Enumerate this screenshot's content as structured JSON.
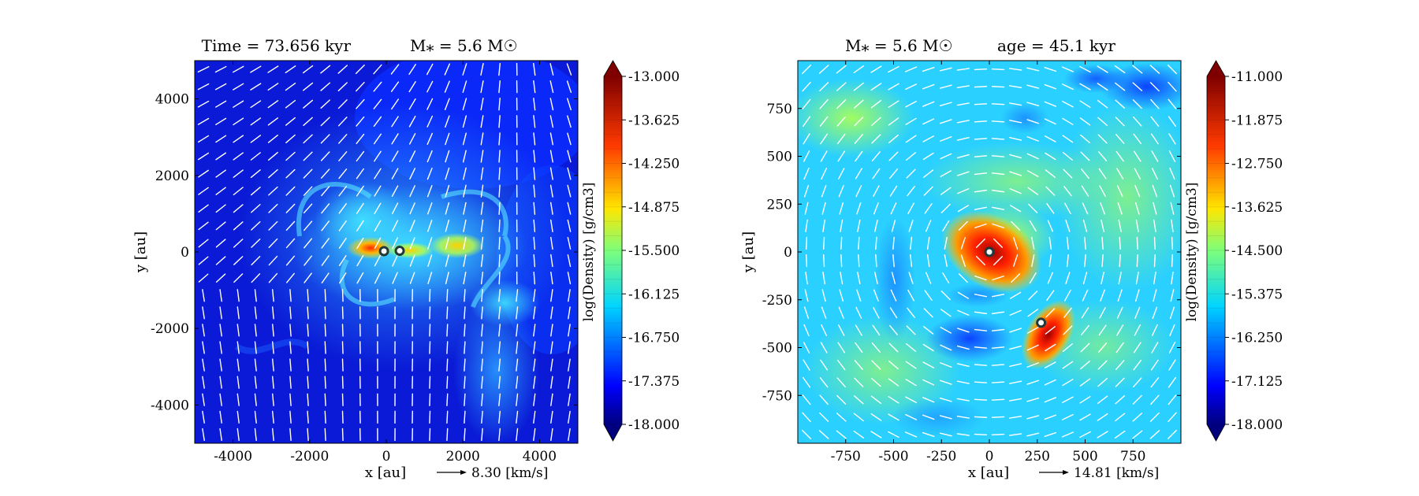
{
  "panels": [
    {
      "title_left": "Time = 73.656 kyr",
      "title_right": "M⁎ = 5.6 M☉",
      "xlabel": "x [au]",
      "ylabel": "y [au]",
      "xticks": [
        -4000,
        -2000,
        0,
        2000,
        4000
      ],
      "yticks": [
        4000,
        2000,
        0,
        -2000,
        -4000
      ],
      "xlim": [
        -5000,
        5000
      ],
      "ylim": [
        -5000,
        5000
      ],
      "colorbar": {
        "label": "log(Density) [g/cm3]",
        "min": -18.0,
        "max": -13.0,
        "ticks": [
          "-13.000",
          "-13.625",
          "-14.250",
          "-14.875",
          "-15.500",
          "-16.125",
          "-16.750",
          "-17.375",
          "-18.000"
        ]
      },
      "quiver_key": "8.30 [km/s]",
      "sinks": [
        {
          "x": -60,
          "y": 20
        },
        {
          "x": 350,
          "y": 30
        }
      ]
    },
    {
      "title_left": "M⁎ = 5.6 M☉",
      "title_right": "age = 45.1 kyr",
      "xlabel": "x [au]",
      "ylabel": "y [au]",
      "xticks": [
        -750,
        -500,
        -250,
        0,
        250,
        500,
        750
      ],
      "yticks": [
        750,
        500,
        250,
        0,
        -250,
        -500,
        -750
      ],
      "xlim": [
        -1000,
        1000
      ],
      "ylim": [
        -1000,
        1000
      ],
      "colorbar": {
        "label": "log(Density) [g/cm3]",
        "min": -18.0,
        "max": -11.0,
        "ticks": [
          "-11.000",
          "-11.875",
          "-12.750",
          "-13.625",
          "-14.500",
          "-15.375",
          "-16.250",
          "-17.125",
          "-18.000"
        ]
      },
      "quiver_key": "14.81 [km/s]",
      "sinks": [
        {
          "x": 0,
          "y": 0
        },
        {
          "x": 270,
          "y": -370
        }
      ]
    }
  ],
  "chart_data": [
    {
      "type": "heatmap",
      "title": "Time = 73.656 kyr    M⁎ = 5.6 M☉",
      "xlabel": "x [au]",
      "ylabel": "y [au]",
      "xlim": [
        -5000,
        5000
      ],
      "ylim": [
        -5000,
        5000
      ],
      "colorbar_label": "log(Density) [g/cm3]",
      "colorbar_range": [
        -18.0,
        -13.0
      ],
      "quiver_reference": "8.30 [km/s]"
    },
    {
      "type": "heatmap",
      "title": "M⁎ = 5.6 M☉    age = 45.1 kyr",
      "xlabel": "x [au]",
      "ylabel": "y [au]",
      "xlim": [
        -1000,
        1000
      ],
      "ylim": [
        -1000,
        1000
      ],
      "colorbar_label": "log(Density) [g/cm3]",
      "colorbar_range": [
        -18.0,
        -11.0
      ],
      "quiver_reference": "14.81 [km/s]"
    }
  ]
}
